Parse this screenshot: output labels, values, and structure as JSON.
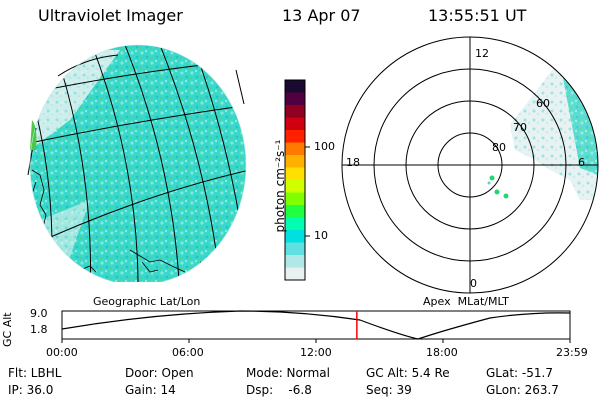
{
  "header": {
    "instrument": "Ultraviolet Imager",
    "date": "13 Apr 07",
    "time": "13:55:51 UT"
  },
  "colorbar": {
    "label": "photon cm⁻²s⁻¹",
    "ticks": [
      "100",
      "10"
    ],
    "colors": [
      "#1a0a30",
      "#500040",
      "#900020",
      "#d00010",
      "#ff2000",
      "#ff7a00",
      "#ffb000",
      "#ffe000",
      "#d0ff00",
      "#80ff00",
      "#20ff40",
      "#00ffb0",
      "#00e0e0",
      "#60e0e0",
      "#b0e8e8",
      "#e8f0f0"
    ]
  },
  "map_labels": {
    "geographic": "Geographic Lat/Lon",
    "apex": "Apex  MLat/MLT"
  },
  "polar": {
    "mlt_top": "12",
    "mlt_left": "18",
    "mlt_right": "6",
    "mlt_bottom": "0",
    "lat_60": "60",
    "lat_70": "70",
    "lat_80": "80"
  },
  "altitude_plot": {
    "ylabel": "GC Alt",
    "ymax": "9.0",
    "ymin": "1.8",
    "xticks": [
      "00:00",
      "06:00",
      "12:00",
      "18:00",
      "23:59"
    ],
    "current_time_hours": 13.93,
    "marker_color": "#ff0000"
  },
  "status": {
    "flt": "Flt: LBHL",
    "ip": "IP: 36.0",
    "door": "Door: Open",
    "gain": "Gain: 14",
    "mode": "Mode: Normal",
    "dsp": "Dsp:    -6.8",
    "gcalt": "GC Alt: 5.4 Re",
    "seq": "Seq: 39",
    "glat": "GLat: -51.7",
    "glon": "GLon: 263.7"
  }
}
